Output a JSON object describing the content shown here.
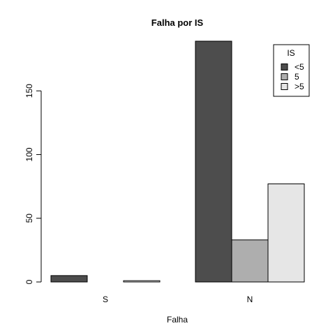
{
  "chart_data": {
    "type": "bar",
    "title": "Falha por IS",
    "xlabel": "Falha",
    "ylabel": "",
    "categories": [
      "S",
      "N"
    ],
    "series": [
      {
        "name": "<5",
        "values": [
          5,
          189
        ],
        "color": "#4d4d4d"
      },
      {
        "name": "5",
        "values": [
          0,
          33
        ],
        "color": "#aeaeae"
      },
      {
        "name": ">5",
        "values": [
          1,
          77
        ],
        "color": "#e6e6e6"
      }
    ],
    "ylim": [
      0,
      189
    ],
    "yticks": [
      0,
      50,
      100,
      150
    ],
    "legend": {
      "title": "IS",
      "position": "top-right"
    },
    "grid": false
  }
}
